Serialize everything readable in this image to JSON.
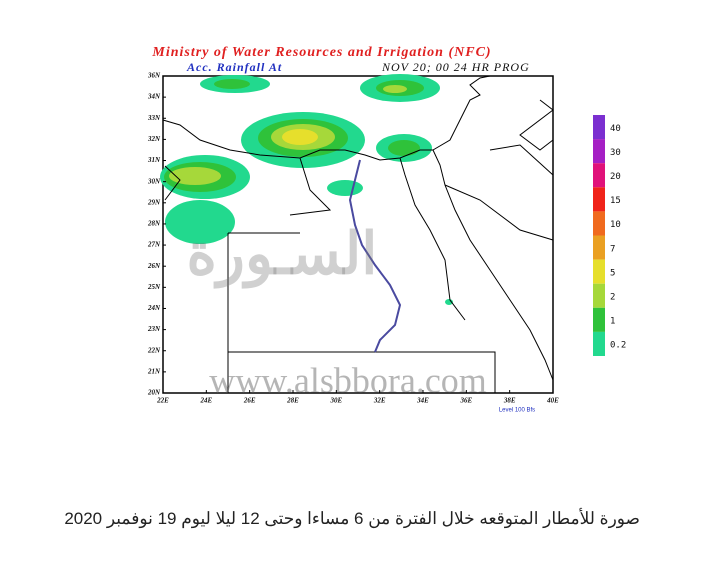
{
  "map": {
    "title": "Ministry of Water Resources and Irrigation (NFC)",
    "subtitle_left": "Acc. Rainfall   At",
    "subtitle_right": "NOV 20; 00   24 HR PROG",
    "lat_labels": [
      "36N",
      "34N",
      "33N",
      "32N",
      "31N",
      "30N",
      "29N",
      "28N",
      "27N",
      "26N",
      "25N",
      "24N",
      "23N",
      "22N",
      "21N",
      "20N"
    ],
    "lon_labels": [
      "22E",
      "24E",
      "26E",
      "28E",
      "30E",
      "32E",
      "34E",
      "36E",
      "38E",
      "40E"
    ],
    "level_note": "Level 100 Bfs",
    "legend": [
      {
        "label": "40",
        "color": "#7b2fd0"
      },
      {
        "label": "30",
        "color": "#a51fc4"
      },
      {
        "label": "20",
        "color": "#e0127a"
      },
      {
        "label": "15",
        "color": "#f0231a"
      },
      {
        "label": "10",
        "color": "#f06a1e"
      },
      {
        "label": "7",
        "color": "#eaa022"
      },
      {
        "label": "5",
        "color": "#e6df2c"
      },
      {
        "label": "2",
        "color": "#a6d83a"
      },
      {
        "label": "1",
        "color": "#2fc23a"
      },
      {
        "label": "0.2",
        "color": "#22d98e"
      }
    ],
    "watermark_arabic": "السـورة",
    "watermark_url": "www.alsbbora.com"
  },
  "caption": "صورة للأمطار المتوقعه خلال الفترة من 6 مساءا وحتى 12 ليلا ليوم 19 نوفمبر 2020"
}
